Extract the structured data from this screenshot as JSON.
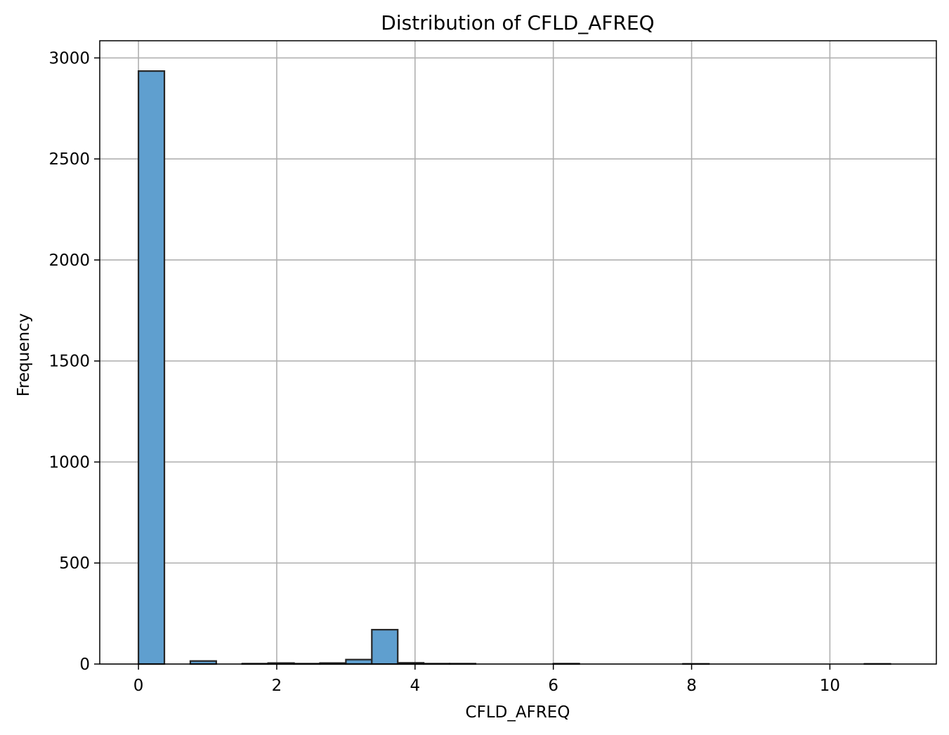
{
  "chart_data": {
    "type": "bar",
    "title": "Distribution of CFLD_AFREQ",
    "xlabel": "CFLD_AFREQ",
    "ylabel": "Frequency",
    "xlim": [
      -0.56,
      11.54
    ],
    "ylim": [
      0,
      3085
    ],
    "x_ticks": [
      0,
      2,
      4,
      6,
      8,
      10
    ],
    "y_ticks": [
      0,
      500,
      1000,
      1500,
      2000,
      2500,
      3000
    ],
    "grid": true,
    "bar_color": "#5f9fcf",
    "edge_color": "#262626",
    "bins": [
      {
        "x0": 0.0,
        "x1": 0.375,
        "value": 2935
      },
      {
        "x0": 0.75,
        "x1": 1.125,
        "value": 15
      },
      {
        "x0": 1.5,
        "x1": 1.875,
        "value": 2
      },
      {
        "x0": 1.875,
        "x1": 2.25,
        "value": 5
      },
      {
        "x0": 2.25,
        "x1": 2.625,
        "value": 2
      },
      {
        "x0": 2.625,
        "x1": 3.0,
        "value": 5
      },
      {
        "x0": 3.0,
        "x1": 3.375,
        "value": 22
      },
      {
        "x0": 3.375,
        "x1": 3.75,
        "value": 170
      },
      {
        "x0": 3.75,
        "x1": 4.125,
        "value": 6
      },
      {
        "x0": 4.125,
        "x1": 4.5,
        "value": 2
      },
      {
        "x0": 4.5,
        "x1": 4.875,
        "value": 2
      },
      {
        "x0": 6.0,
        "x1": 6.375,
        "value": 2
      },
      {
        "x0": 7.875,
        "x1": 8.25,
        "value": 1
      },
      {
        "x0": 10.5,
        "x1": 10.875,
        "value": 1
      }
    ]
  }
}
